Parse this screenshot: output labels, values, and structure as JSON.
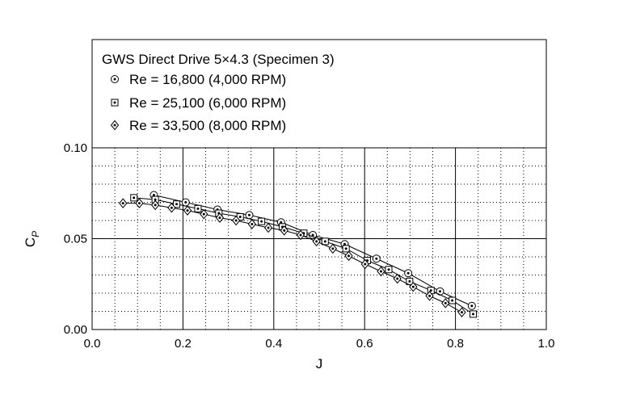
{
  "chart_data": {
    "type": "line",
    "title": "GWS Direct Drive 5×4.3 (Specimen 3)",
    "xlabel": "J",
    "ylabel_main": "C",
    "ylabel_sub": "P",
    "xlim": [
      0.0,
      1.0
    ],
    "ylim": [
      0.0,
      0.1
    ],
    "xticks": [
      "0.0",
      "0.2",
      "0.4",
      "0.6",
      "0.8",
      "1.0"
    ],
    "yticks": [
      "0.00",
      "0.05",
      "0.10"
    ],
    "grid": true,
    "legend_position": "top-left",
    "series": [
      {
        "name": "Re = 16,800 (4,000 RPM)",
        "marker": "circle-dot",
        "x": [
          0.136,
          0.206,
          0.276,
          0.346,
          0.416,
          0.486,
          0.556,
          0.626,
          0.696,
          0.766,
          0.836
        ],
        "y": [
          0.074,
          0.07,
          0.066,
          0.063,
          0.059,
          0.052,
          0.047,
          0.039,
          0.031,
          0.021,
          0.013
        ]
      },
      {
        "name": "Re = 25,100 (6,000 RPM)",
        "marker": "square-dot",
        "x": [
          0.092,
          0.139,
          0.186,
          0.233,
          0.279,
          0.326,
          0.373,
          0.419,
          0.466,
          0.513,
          0.559,
          0.606,
          0.653,
          0.699,
          0.746,
          0.793,
          0.839
        ],
        "y": [
          0.0725,
          0.0715,
          0.069,
          0.0665,
          0.064,
          0.062,
          0.0595,
          0.0565,
          0.053,
          0.0485,
          0.0445,
          0.038,
          0.033,
          0.0265,
          0.0215,
          0.016,
          0.0085
        ]
      },
      {
        "name": "Re = 33,500 (8,000 RPM)",
        "marker": "diamond-dot",
        "x": [
          0.068,
          0.104,
          0.139,
          0.175,
          0.21,
          0.246,
          0.281,
          0.317,
          0.352,
          0.388,
          0.423,
          0.459,
          0.494,
          0.53,
          0.565,
          0.601,
          0.636,
          0.672,
          0.707,
          0.743,
          0.778,
          0.814
        ],
        "y": [
          0.0695,
          0.0695,
          0.0685,
          0.067,
          0.0655,
          0.0635,
          0.0615,
          0.06,
          0.058,
          0.056,
          0.0545,
          0.052,
          0.0485,
          0.0445,
          0.0405,
          0.036,
          0.032,
          0.028,
          0.0235,
          0.0185,
          0.0145,
          0.0095
        ]
      }
    ]
  }
}
